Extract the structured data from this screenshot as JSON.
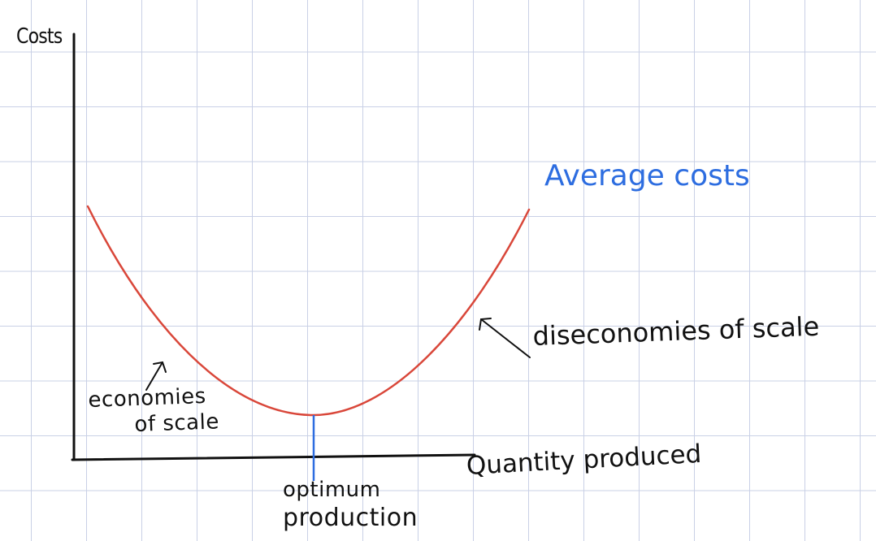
{
  "labels": {
    "y_axis": "Costs",
    "curve": "Average costs",
    "x_axis": "Quantity produced",
    "left_region_line1": "economies",
    "left_region_line2": "of scale",
    "right_region": "diseconomies of scale",
    "optimum_line1": "optimum",
    "optimum_line2": "production"
  },
  "colors": {
    "curve": "#d9473a",
    "optimum_marker": "#2d6de0",
    "curve_label": "#2d6de0",
    "axes": "#111111",
    "grid": "#c9d0e6"
  }
}
